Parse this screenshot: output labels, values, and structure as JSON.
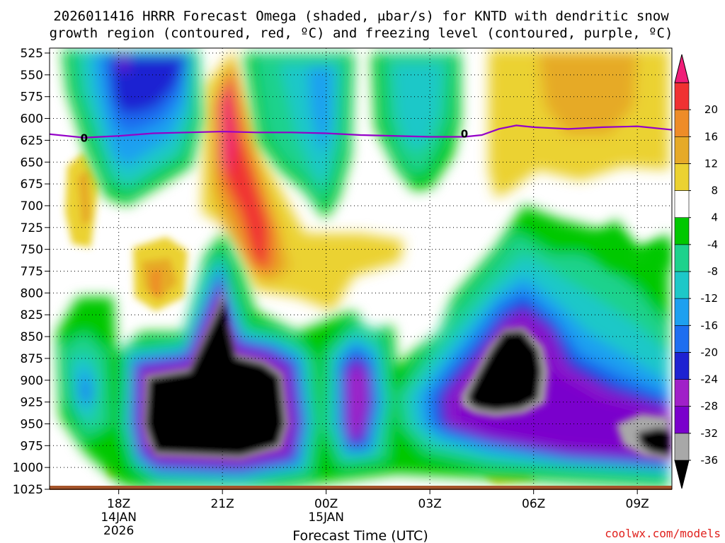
{
  "chart_data": {
    "type": "heatmap",
    "title": "2026011416 HRRR Forecast Omega (shaded, μbar/s) for KNTD with dendritic snow growth region (contoured, red, ºC) and freezing level (contoured, purple, ºC)",
    "title_lines": [
      "2026011416 HRRR Forecast Omega (shaded, μbar/s) for KNTD with dendritic snow",
      "growth region (contoured, red, ºC) and freezing level (contoured, purple, ºC)"
    ],
    "xlabel": "Forecast Time (UTC)",
    "ylabel": "",
    "x_range_hours": [
      16.0,
      34.0
    ],
    "y_range_hpa": [
      525,
      1025
    ],
    "y_ticks": [
      "525",
      "550",
      "575",
      "600",
      "625",
      "650",
      "675",
      "700",
      "725",
      "750",
      "775",
      "800",
      "825",
      "850",
      "875",
      "900",
      "925",
      "950",
      "975",
      "1000",
      "1025"
    ],
    "x_ticks": [
      {
        "hour": 18,
        "lines": [
          "18Z",
          "14JAN",
          "2026"
        ]
      },
      {
        "hour": 21,
        "lines": [
          "21Z"
        ]
      },
      {
        "hour": 24,
        "lines": [
          "00Z",
          "15JAN"
        ]
      },
      {
        "hour": 27,
        "lines": [
          "03Z"
        ]
      },
      {
        "hour": 30,
        "lines": [
          "06Z"
        ]
      },
      {
        "hour": 33,
        "lines": [
          "09Z"
        ]
      }
    ],
    "grid": true,
    "colorbar": {
      "levels": [
        "-36",
        "-32",
        "-28",
        "-24",
        "-20",
        "-16",
        "-12",
        "-8",
        "-4",
        "4",
        "8",
        "12",
        "16",
        "20"
      ],
      "colors": [
        "#000000",
        "#a8a8a8",
        "#7a00cc",
        "#a020c8",
        "#1e22d2",
        "#1e6ef0",
        "#1ea0f0",
        "#1ec8c8",
        "#1ed28c",
        "#00c800",
        "#ffffff",
        "#ebd232",
        "#e6aa28",
        "#ee8c28",
        "#f03232",
        "#f01e78"
      ]
    },
    "freezing_level": {
      "label": "0",
      "color": "#9400c8",
      "points": [
        [
          16.0,
          618
        ],
        [
          17.0,
          622
        ],
        [
          18.0,
          620
        ],
        [
          19.0,
          617
        ],
        [
          20.0,
          616
        ],
        [
          21.0,
          615
        ],
        [
          22.0,
          616
        ],
        [
          23.0,
          616
        ],
        [
          24.0,
          617
        ],
        [
          25.0,
          619
        ],
        [
          26.0,
          620
        ],
        [
          27.0,
          621
        ],
        [
          28.0,
          621
        ],
        [
          28.5,
          619
        ],
        [
          29.0,
          612
        ],
        [
          29.5,
          608
        ],
        [
          30.0,
          610
        ],
        [
          31.0,
          612
        ],
        [
          32.0,
          610
        ],
        [
          33.0,
          609
        ],
        [
          34.0,
          613
        ]
      ]
    },
    "omega_features": [
      {
        "name": "rising-core-1",
        "value": -40,
        "center_time": 20.8,
        "center_hpa": 915
      },
      {
        "name": "rising-core-2",
        "value": -40,
        "center_time": 30.0,
        "center_hpa": 855
      },
      {
        "name": "rising-core-3",
        "value": -36,
        "center_time": 33.8,
        "center_hpa": 940
      },
      {
        "name": "sinking-max-1",
        "value": 20,
        "center_time": 21.2,
        "center_hpa": 620
      },
      {
        "name": "sinking-max-2",
        "value": 16,
        "center_time": 22.0,
        "center_hpa": 705
      },
      {
        "name": "sinking-max-3",
        "value": 12,
        "center_time": 32.0,
        "center_hpa": 560
      },
      {
        "name": "rising-upper-1",
        "value": -24,
        "center_time": 18.5,
        "center_hpa": 550
      },
      {
        "name": "rising-upper-2",
        "value": -16,
        "center_time": 23.7,
        "center_hpa": 600
      },
      {
        "name": "rising-upper-3",
        "value": -16,
        "center_time": 26.7,
        "center_hpa": 565
      }
    ],
    "ground_color": "#a5542a"
  },
  "credit": "coolwx.com/models",
  "colors": {
    "credit": "#e0201c",
    "freezing_line": "#9400c8",
    "ground": "#a5542a"
  }
}
